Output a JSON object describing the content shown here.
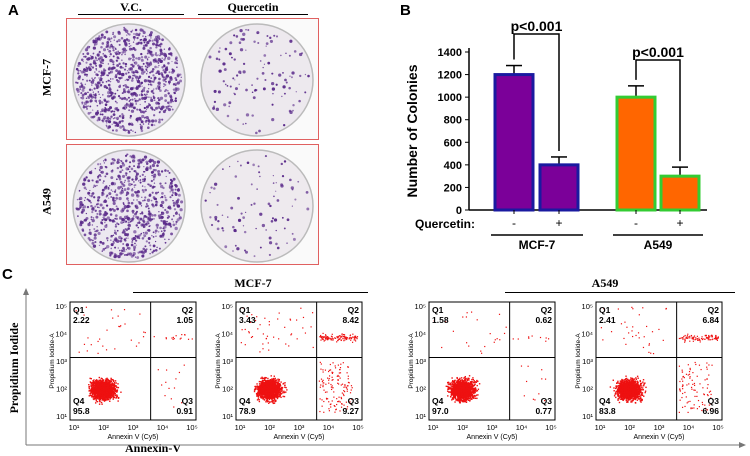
{
  "panel_a": {
    "letter": "A",
    "columns": [
      "V.C.",
      "Quercetin"
    ],
    "rows": [
      "MCF-7",
      "A549"
    ]
  },
  "panel_b": {
    "letter": "B"
  },
  "panel_c": {
    "letter": "C",
    "group_labels": [
      "MCF-7",
      "A549"
    ],
    "y_title": "Propidium Iodide",
    "x_title": "Annexin-V",
    "plot_y_label": "Propidium Iodide-A",
    "plot_x_label": "Annexin V (Cy5)",
    "plots": [
      {
        "group": "MCF-7",
        "treatment": "control",
        "Q1": "2.22",
        "Q2": "1.05",
        "Q3": "0.91",
        "Q4": "95.8"
      },
      {
        "group": "MCF-7",
        "treatment": "quercetin",
        "Q1": "3.43",
        "Q2": "8.42",
        "Q3": "9.27",
        "Q4": "78.9"
      },
      {
        "group": "A549",
        "treatment": "control",
        "Q1": "1.58",
        "Q2": "0.62",
        "Q3": "0.77",
        "Q4": "97.0"
      },
      {
        "group": "A549",
        "treatment": "quercetin",
        "Q1": "2.41",
        "Q2": "6.84",
        "Q3": "6.96",
        "Q4": "83.8"
      }
    ]
  },
  "colors": {
    "mcf7_bar": "#7b0099",
    "mcf7_border": "#1a1aa0",
    "a549_bar": "#ff6600",
    "a549_border": "#33cc33",
    "dots": "#ee1111",
    "plate_stain": "#5a2a8a"
  },
  "chart_data": {
    "type": "bar",
    "ylabel": "Number of Colonies",
    "ylim": [
      0,
      1400
    ],
    "yticks": [
      0,
      200,
      400,
      600,
      800,
      1000,
      1200,
      1400
    ],
    "x_row_label": "Quercetin:",
    "groups": [
      "MCF-7",
      "A549"
    ],
    "bars": [
      {
        "group": "MCF-7",
        "treatment": "-",
        "value": 1200,
        "error": 80
      },
      {
        "group": "MCF-7",
        "treatment": "+",
        "value": 400,
        "error": 70
      },
      {
        "group": "A549",
        "treatment": "-",
        "value": 1000,
        "error": 100
      },
      {
        "group": "A549",
        "treatment": "+",
        "value": 300,
        "error": 80
      }
    ],
    "annotations": [
      "p<0.001",
      "p<0.001"
    ]
  }
}
